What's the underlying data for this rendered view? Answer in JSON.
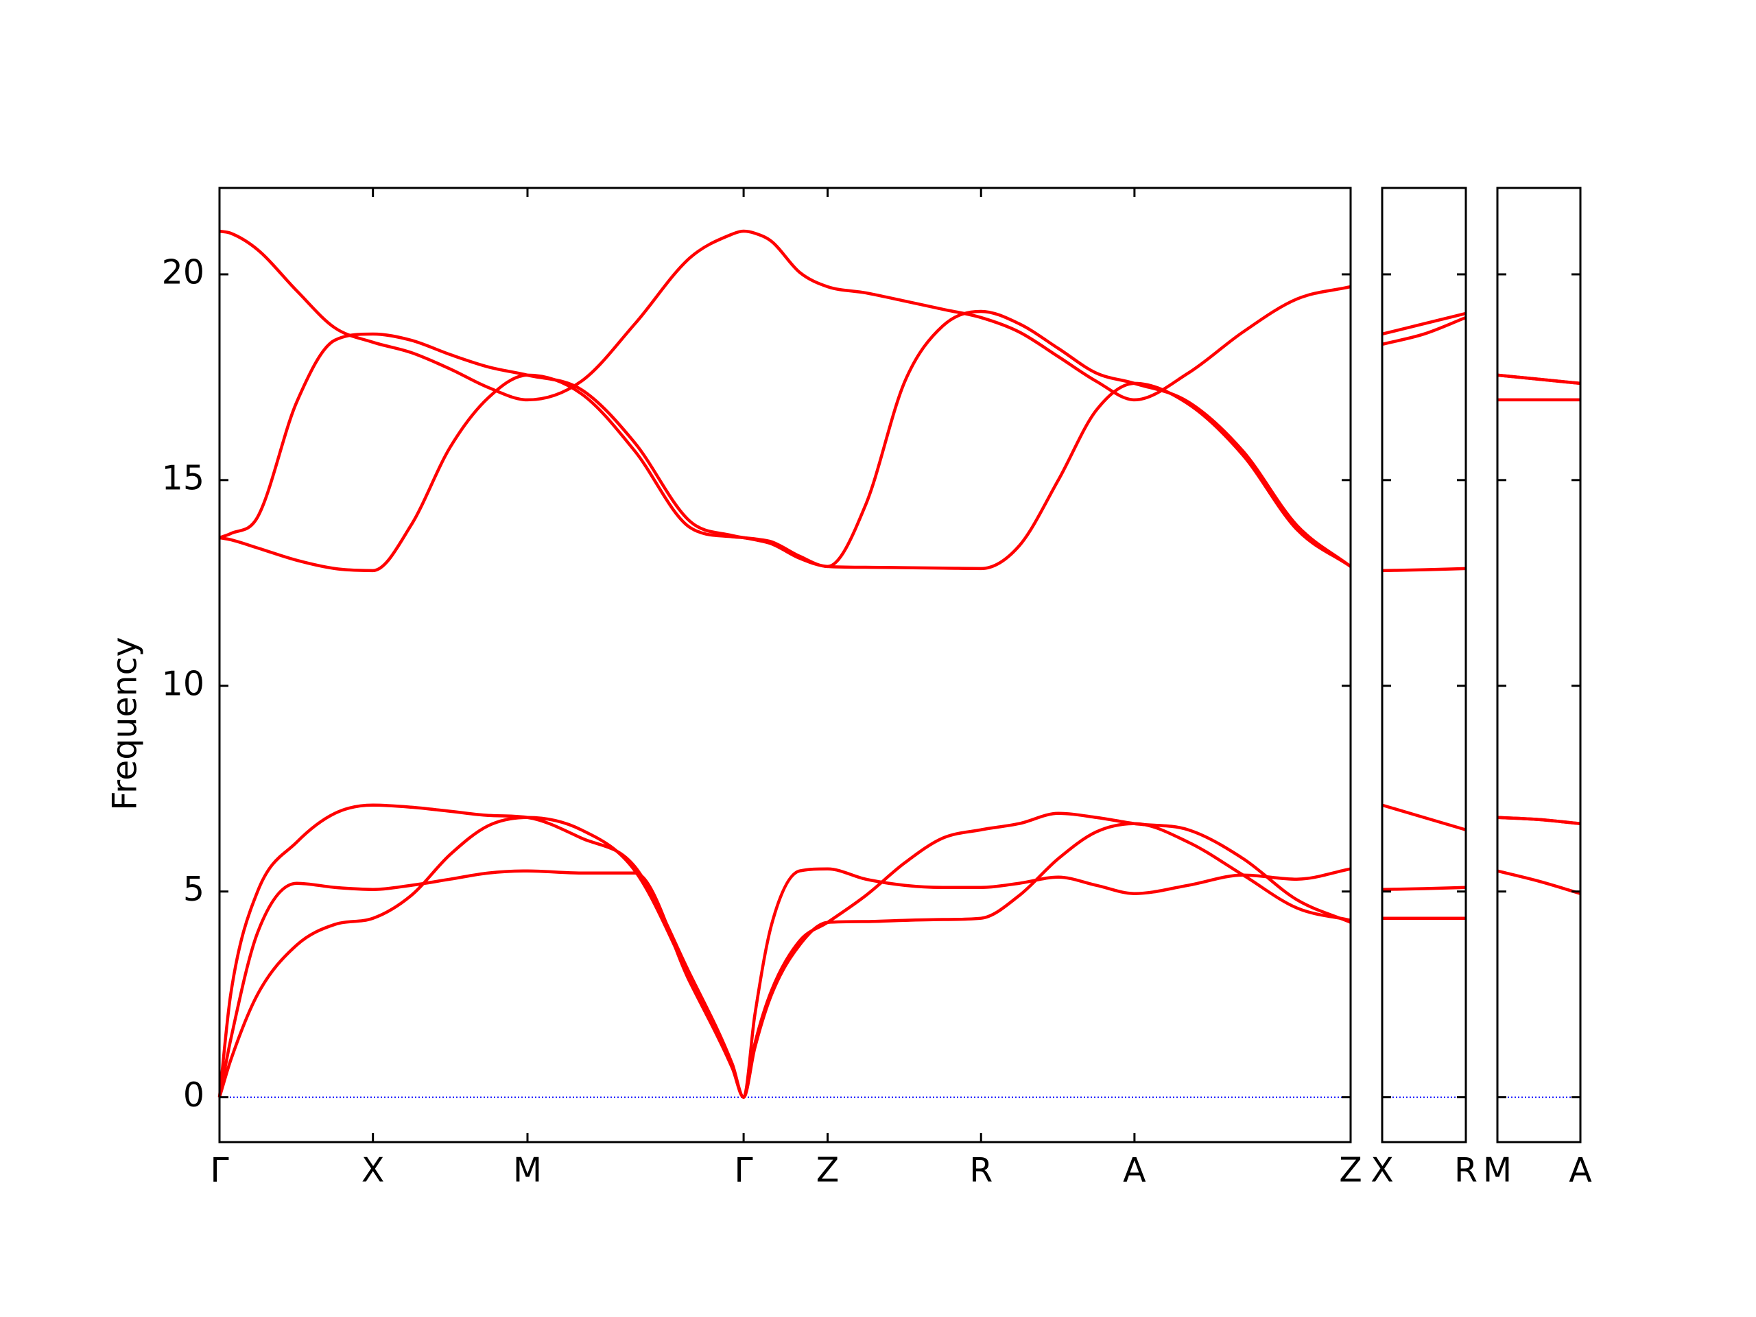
{
  "chart_data": [
    {
      "type": "line",
      "y_label": "Frequency",
      "color": "#ff0000",
      "show_ytick_labels": true,
      "xlim": [
        0,
        10.1
      ],
      "ylim": [
        -1.09,
        22.1
      ],
      "yticks": [
        0,
        5,
        10,
        15,
        20
      ],
      "xticks": [
        {
          "value": 0,
          "label": "Γ"
        },
        {
          "value": 1.37,
          "label": "X"
        },
        {
          "value": 2.75,
          "label": "M"
        },
        {
          "value": 4.68,
          "label": "Γ"
        },
        {
          "value": 5.43,
          "label": "Z"
        },
        {
          "value": 6.8,
          "label": "R"
        },
        {
          "value": 8.17,
          "label": "A"
        },
        {
          "value": 10.1,
          "label": "Z"
        }
      ],
      "zero_line": {
        "value": 0,
        "color": "#0000ff"
      },
      "x": [
        0,
        0.1,
        0.34,
        0.69,
        1.03,
        1.37,
        1.71,
        2.06,
        2.4,
        2.75,
        3.23,
        3.71,
        4.2,
        4.58,
        4.68,
        4.78,
        4.93,
        5.18,
        5.43,
        5.77,
        6.12,
        6.46,
        6.8,
        7.14,
        7.49,
        7.83,
        8.17,
        8.65,
        9.14,
        9.62,
        10.1
      ],
      "series": [
        {
          "values": [
            0,
            0.9,
            2.5,
            3.7,
            4.2,
            4.35,
            4.9,
            5.9,
            6.6,
            6.8,
            6.5,
            5.5,
            2.9,
            0.75,
            0,
            1.2,
            2.5,
            3.7,
            4.25,
            4.27,
            4.3,
            4.32,
            4.35,
            4.9,
            5.8,
            6.45,
            6.65,
            6.2,
            5.4,
            4.6,
            4.3
          ]
        },
        {
          "values": [
            0,
            1.4,
            4.0,
            5.2,
            5.1,
            5.05,
            5.15,
            5.3,
            5.45,
            5.5,
            5.45,
            5.45,
            2.8,
            0.7,
            0,
            1.3,
            2.6,
            3.8,
            4.25,
            4.9,
            5.7,
            6.3,
            6.5,
            6.65,
            6.9,
            6.8,
            6.65,
            6.5,
            5.8,
            4.8,
            4.25
          ]
        },
        {
          "values": [
            0,
            2.5,
            5.0,
            6.2,
            6.9,
            7.1,
            7.05,
            6.95,
            6.85,
            6.8,
            6.3,
            5.6,
            3.0,
            0.8,
            0,
            2.0,
            4.2,
            5.5,
            5.55,
            5.3,
            5.15,
            5.1,
            5.1,
            5.2,
            5.35,
            5.15,
            4.95,
            5.15,
            5.4,
            5.3,
            5.55
          ]
        },
        {
          "values": [
            13.6,
            13.55,
            13.35,
            13.05,
            12.85,
            12.8,
            13.9,
            15.8,
            17.0,
            17.55,
            17.1,
            15.7,
            13.85,
            13.62,
            13.6,
            13.55,
            13.45,
            13.1,
            12.9,
            12.88,
            12.87,
            12.86,
            12.85,
            13.4,
            15.0,
            16.7,
            17.35,
            16.85,
            15.6,
            13.8,
            12.9
          ]
        },
        {
          "values": [
            13.6,
            13.7,
            14.1,
            16.9,
            18.4,
            18.55,
            18.4,
            18.05,
            17.75,
            17.55,
            17.2,
            15.9,
            14.0,
            13.65,
            13.6,
            13.57,
            13.5,
            13.15,
            12.9,
            14.4,
            17.4,
            18.75,
            19.1,
            18.8,
            18.2,
            17.6,
            17.35,
            16.9,
            15.7,
            13.9,
            12.9
          ]
        },
        {
          "values": [
            21.05,
            21.0,
            20.6,
            19.6,
            18.7,
            18.35,
            18.1,
            17.7,
            17.25,
            16.95,
            17.4,
            18.8,
            20.4,
            20.98,
            21.05,
            21.0,
            20.8,
            20.05,
            19.7,
            19.55,
            19.35,
            19.15,
            18.95,
            18.6,
            18.0,
            17.4,
            16.95,
            17.6,
            18.6,
            19.4,
            19.7
          ]
        }
      ]
    },
    {
      "type": "line",
      "color": "#ff0000",
      "show_ytick_labels": false,
      "xlim": [
        0,
        0.75
      ],
      "ylim": [
        -1.09,
        22.1
      ],
      "yticks": [
        0,
        5,
        10,
        15,
        20
      ],
      "xticks": [
        {
          "value": 0,
          "label": "X"
        },
        {
          "value": 0.75,
          "label": "R"
        }
      ],
      "zero_line": {
        "value": 0,
        "color": "#0000ff"
      },
      "x": [
        0,
        0.375,
        0.75
      ],
      "series": [
        {
          "values": [
            4.35,
            4.35,
            4.35
          ]
        },
        {
          "values": [
            5.05,
            5.07,
            5.1
          ]
        },
        {
          "values": [
            7.1,
            6.8,
            6.5
          ]
        },
        {
          "values": [
            12.8,
            12.82,
            12.85
          ]
        },
        {
          "values": [
            18.3,
            18.55,
            18.95
          ]
        },
        {
          "values": [
            18.55,
            18.8,
            19.05
          ]
        }
      ]
    },
    {
      "type": "line",
      "color": "#ff0000",
      "show_ytick_labels": false,
      "xlim": [
        0,
        0.74
      ],
      "ylim": [
        -1.09,
        22.1
      ],
      "yticks": [
        0,
        5,
        10,
        15,
        20
      ],
      "xticks": [
        {
          "value": 0,
          "label": "M"
        },
        {
          "value": 0.74,
          "label": "A"
        }
      ],
      "zero_line": {
        "value": 0,
        "color": "#0000ff"
      },
      "x": [
        0,
        0.37,
        0.74
      ],
      "series": [
        {
          "values": [
            5.5,
            5.25,
            4.95
          ]
        },
        {
          "values": [
            6.8,
            6.75,
            6.65
          ]
        },
        {
          "values": [
            6.8,
            6.75,
            6.65
          ]
        },
        {
          "values": [
            16.95,
            16.95,
            16.95
          ]
        },
        {
          "values": [
            17.55,
            17.45,
            17.35
          ]
        },
        {
          "values": [
            17.55,
            17.45,
            17.35
          ]
        }
      ]
    }
  ]
}
